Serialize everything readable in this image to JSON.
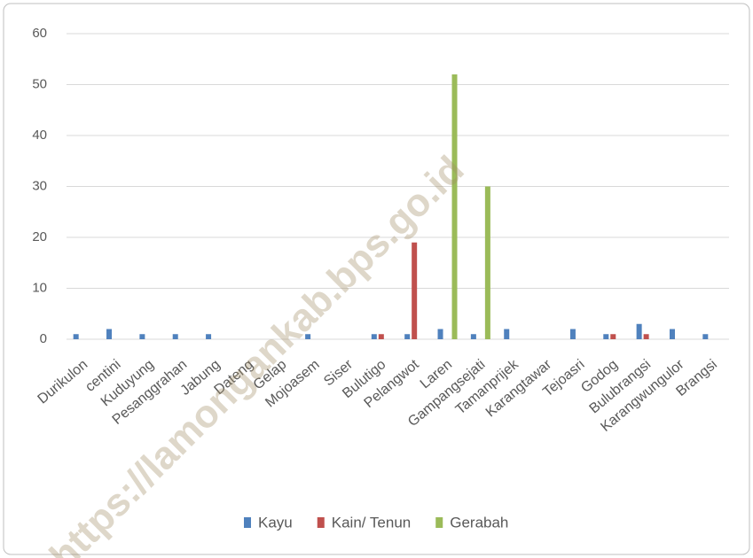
{
  "chart_data": {
    "type": "bar",
    "categories": [
      "Durikulon",
      "centini",
      "Kuduyung",
      "Pesanggrahan",
      "Jabung",
      "Dateng",
      "Gelap",
      "Mojoasem",
      "Siser",
      "Bulutigo",
      "Pelangwot",
      "Laren",
      "Gampangsejati",
      "Tamanprijek",
      "Karangtawar",
      "Tejoasri",
      "Godog",
      "Bulubrangsi",
      "Karangwungulor",
      "Brangsi"
    ],
    "series": [
      {
        "name": "Kayu",
        "color": "#4f81bd",
        "values": [
          1,
          2,
          1,
          1,
          1,
          0,
          0,
          1,
          0,
          1,
          1,
          2,
          1,
          2,
          0,
          2,
          1,
          3,
          2,
          1
        ]
      },
      {
        "name": "Kain/ Tenun",
        "color": "#c0504d",
        "values": [
          0,
          0,
          0,
          0,
          0,
          0,
          0,
          0,
          0,
          1,
          19,
          0,
          0,
          0,
          0,
          0,
          1,
          1,
          0,
          0
        ]
      },
      {
        "name": "Gerabah",
        "color": "#9bbb59",
        "values": [
          0,
          0,
          0,
          0,
          0,
          0,
          0,
          0,
          0,
          0,
          0,
          52,
          30,
          0,
          0,
          0,
          0,
          0,
          0,
          0
        ]
      }
    ],
    "ylim": [
      0,
      60
    ],
    "yticks": [
      0,
      10,
      20,
      30,
      40,
      50,
      60
    ],
    "grid": true,
    "legend": "bottom",
    "watermark": "https://lamongankab.bps.go.id"
  }
}
